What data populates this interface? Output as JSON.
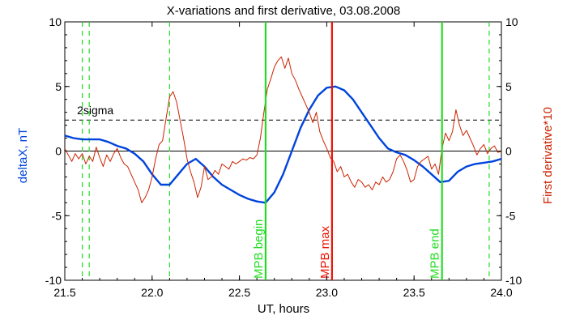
{
  "chart_data": {
    "type": "line",
    "title": "X-variations and first derivative, 03.08.2008",
    "xlabel": "UT, hours",
    "ylabel_left": "deltaX, nT",
    "ylabel_right": "First derivative*10",
    "xlim": [
      21.5,
      24.0
    ],
    "ylim": [
      -10,
      10
    ],
    "x_ticks": [
      "21.5",
      "22.0",
      "22.5",
      "23.0",
      "23.5",
      "24.0"
    ],
    "y_ticks_left": [
      "10",
      "5",
      "0",
      "-5",
      "-10"
    ],
    "y_ticks_right": [
      "10",
      "5",
      "0",
      "-5",
      "-10"
    ],
    "colors": {
      "deltaX": "#0044dd",
      "derivative": "#cc2200",
      "mpb_lines": "#22dd22",
      "mpb_max": "#ee1100",
      "dashed_green": "#22dd22",
      "sigma_line": "#000000"
    },
    "series": [
      {
        "name": "deltaX, nT",
        "color": "#0044dd",
        "x": [
          21.5,
          21.55,
          21.6,
          21.65,
          21.7,
          21.75,
          21.8,
          21.85,
          21.9,
          21.95,
          22.0,
          22.05,
          22.1,
          22.15,
          22.2,
          22.25,
          22.3,
          22.35,
          22.4,
          22.45,
          22.5,
          22.55,
          22.6,
          22.65,
          22.7,
          22.75,
          22.8,
          22.85,
          22.9,
          22.95,
          23.0,
          23.05,
          23.1,
          23.15,
          23.2,
          23.25,
          23.3,
          23.35,
          23.4,
          23.45,
          23.5,
          23.55,
          23.6,
          23.65,
          23.7,
          23.75,
          23.8,
          23.85,
          23.9,
          23.95,
          24.0
        ],
        "y": [
          1.2,
          1.0,
          0.9,
          0.9,
          0.9,
          0.7,
          0.4,
          0.2,
          -0.2,
          -0.8,
          -1.8,
          -2.6,
          -2.6,
          -1.8,
          -1.0,
          -0.6,
          -1.2,
          -2.0,
          -2.6,
          -3.0,
          -3.4,
          -3.7,
          -3.9,
          -4.0,
          -3.2,
          -1.8,
          0.0,
          1.8,
          3.2,
          4.3,
          4.9,
          5.0,
          4.7,
          4.0,
          3.0,
          2.0,
          1.0,
          0.2,
          -0.1,
          -0.3,
          -0.7,
          -1.2,
          -1.8,
          -2.4,
          -2.3,
          -1.6,
          -1.2,
          -1.0,
          -0.9,
          -0.8,
          -0.6
        ]
      },
      {
        "name": "First derivative*10",
        "color": "#cc2200",
        "x": [
          21.5,
          21.52,
          21.54,
          21.56,
          21.58,
          21.6,
          21.62,
          21.64,
          21.66,
          21.68,
          21.7,
          21.72,
          21.74,
          21.76,
          21.78,
          21.8,
          21.82,
          21.84,
          21.86,
          21.88,
          21.9,
          21.92,
          21.94,
          21.96,
          21.98,
          22.0,
          22.02,
          22.04,
          22.06,
          22.08,
          22.1,
          22.12,
          22.14,
          22.16,
          22.18,
          22.2,
          22.22,
          22.24,
          22.26,
          22.28,
          22.3,
          22.32,
          22.34,
          22.36,
          22.38,
          22.4,
          22.42,
          22.44,
          22.46,
          22.48,
          22.5,
          22.52,
          22.54,
          22.56,
          22.58,
          22.6,
          22.62,
          22.64,
          22.66,
          22.68,
          22.7,
          22.72,
          22.74,
          22.76,
          22.78,
          22.8,
          22.82,
          22.84,
          22.86,
          22.88,
          22.9,
          22.92,
          22.94,
          22.96,
          22.98,
          23.0,
          23.02,
          23.04,
          23.06,
          23.08,
          23.1,
          23.12,
          23.14,
          23.16,
          23.18,
          23.2,
          23.22,
          23.24,
          23.26,
          23.28,
          23.3,
          23.32,
          23.34,
          23.36,
          23.38,
          23.4,
          23.42,
          23.44,
          23.46,
          23.48,
          23.5,
          23.52,
          23.54,
          23.56,
          23.58,
          23.6,
          23.62,
          23.64,
          23.66,
          23.68,
          23.7,
          23.72,
          23.74,
          23.76,
          23.78,
          23.8,
          23.82,
          23.84,
          23.86,
          23.88,
          23.9,
          23.92,
          23.94,
          23.96,
          23.98,
          24.0
        ],
        "y": [
          0.2,
          -0.3,
          -0.8,
          -0.2,
          -0.6,
          -0.2,
          -1.0,
          -0.4,
          -0.8,
          0.3,
          -0.5,
          -1.2,
          -0.3,
          -0.8,
          -0.2,
          0.2,
          -0.5,
          -1.0,
          -1.2,
          -1.8,
          -2.4,
          -3.0,
          -4.0,
          -3.6,
          -3.0,
          -2.0,
          -0.6,
          0.5,
          0.8,
          2.5,
          4.2,
          4.6,
          3.8,
          2.4,
          1.0,
          -0.6,
          -1.6,
          -2.4,
          -3.6,
          -2.8,
          -1.2,
          -2.2,
          -2.0,
          -1.5,
          -1.8,
          -1.0,
          -1.2,
          -1.4,
          -0.8,
          -1.0,
          -0.8,
          -0.6,
          -0.7,
          -0.5,
          -0.6,
          -0.3,
          1.0,
          3.0,
          4.8,
          5.6,
          6.5,
          7.0,
          7.3,
          6.4,
          7.2,
          6.0,
          5.5,
          4.8,
          4.2,
          3.6,
          3.0,
          2.2,
          3.0,
          1.5,
          0.8,
          0.2,
          -0.5,
          -0.8,
          -1.6,
          -1.2,
          -2.0,
          -1.8,
          -2.4,
          -2.8,
          -2.2,
          -2.4,
          -2.8,
          -2.6,
          -3.0,
          -2.4,
          -2.6,
          -2.0,
          -2.4,
          -2.2,
          -1.6,
          -0.6,
          -0.3,
          -0.8,
          -1.5,
          -2.4,
          -2.2,
          -1.2,
          -0.8,
          -0.6,
          -0.4,
          -1.4,
          -1.0,
          -1.8,
          0.2,
          1.4,
          0.8,
          1.5,
          3.2,
          2.0,
          1.2,
          1.6,
          1.0,
          0.4,
          -0.3,
          0.2,
          0.5,
          -0.2,
          0.2,
          0.4,
          -0.1,
          0.0
        ]
      }
    ],
    "reference_lines": {
      "zero": 0,
      "sigma_level": 2.4,
      "sigma_label": "2sigma"
    },
    "vertical_markers": [
      {
        "x": 22.65,
        "label": "MPB begin",
        "color": "#22dd22",
        "style": "solid"
      },
      {
        "x": 23.03,
        "label": "MPB max",
        "color": "#ee1100",
        "style": "solid"
      },
      {
        "x": 23.66,
        "label": "MPB end",
        "color": "#22dd22",
        "style": "solid"
      }
    ],
    "dashed_markers": [
      21.6,
      21.64,
      22.1,
      23.93
    ]
  }
}
